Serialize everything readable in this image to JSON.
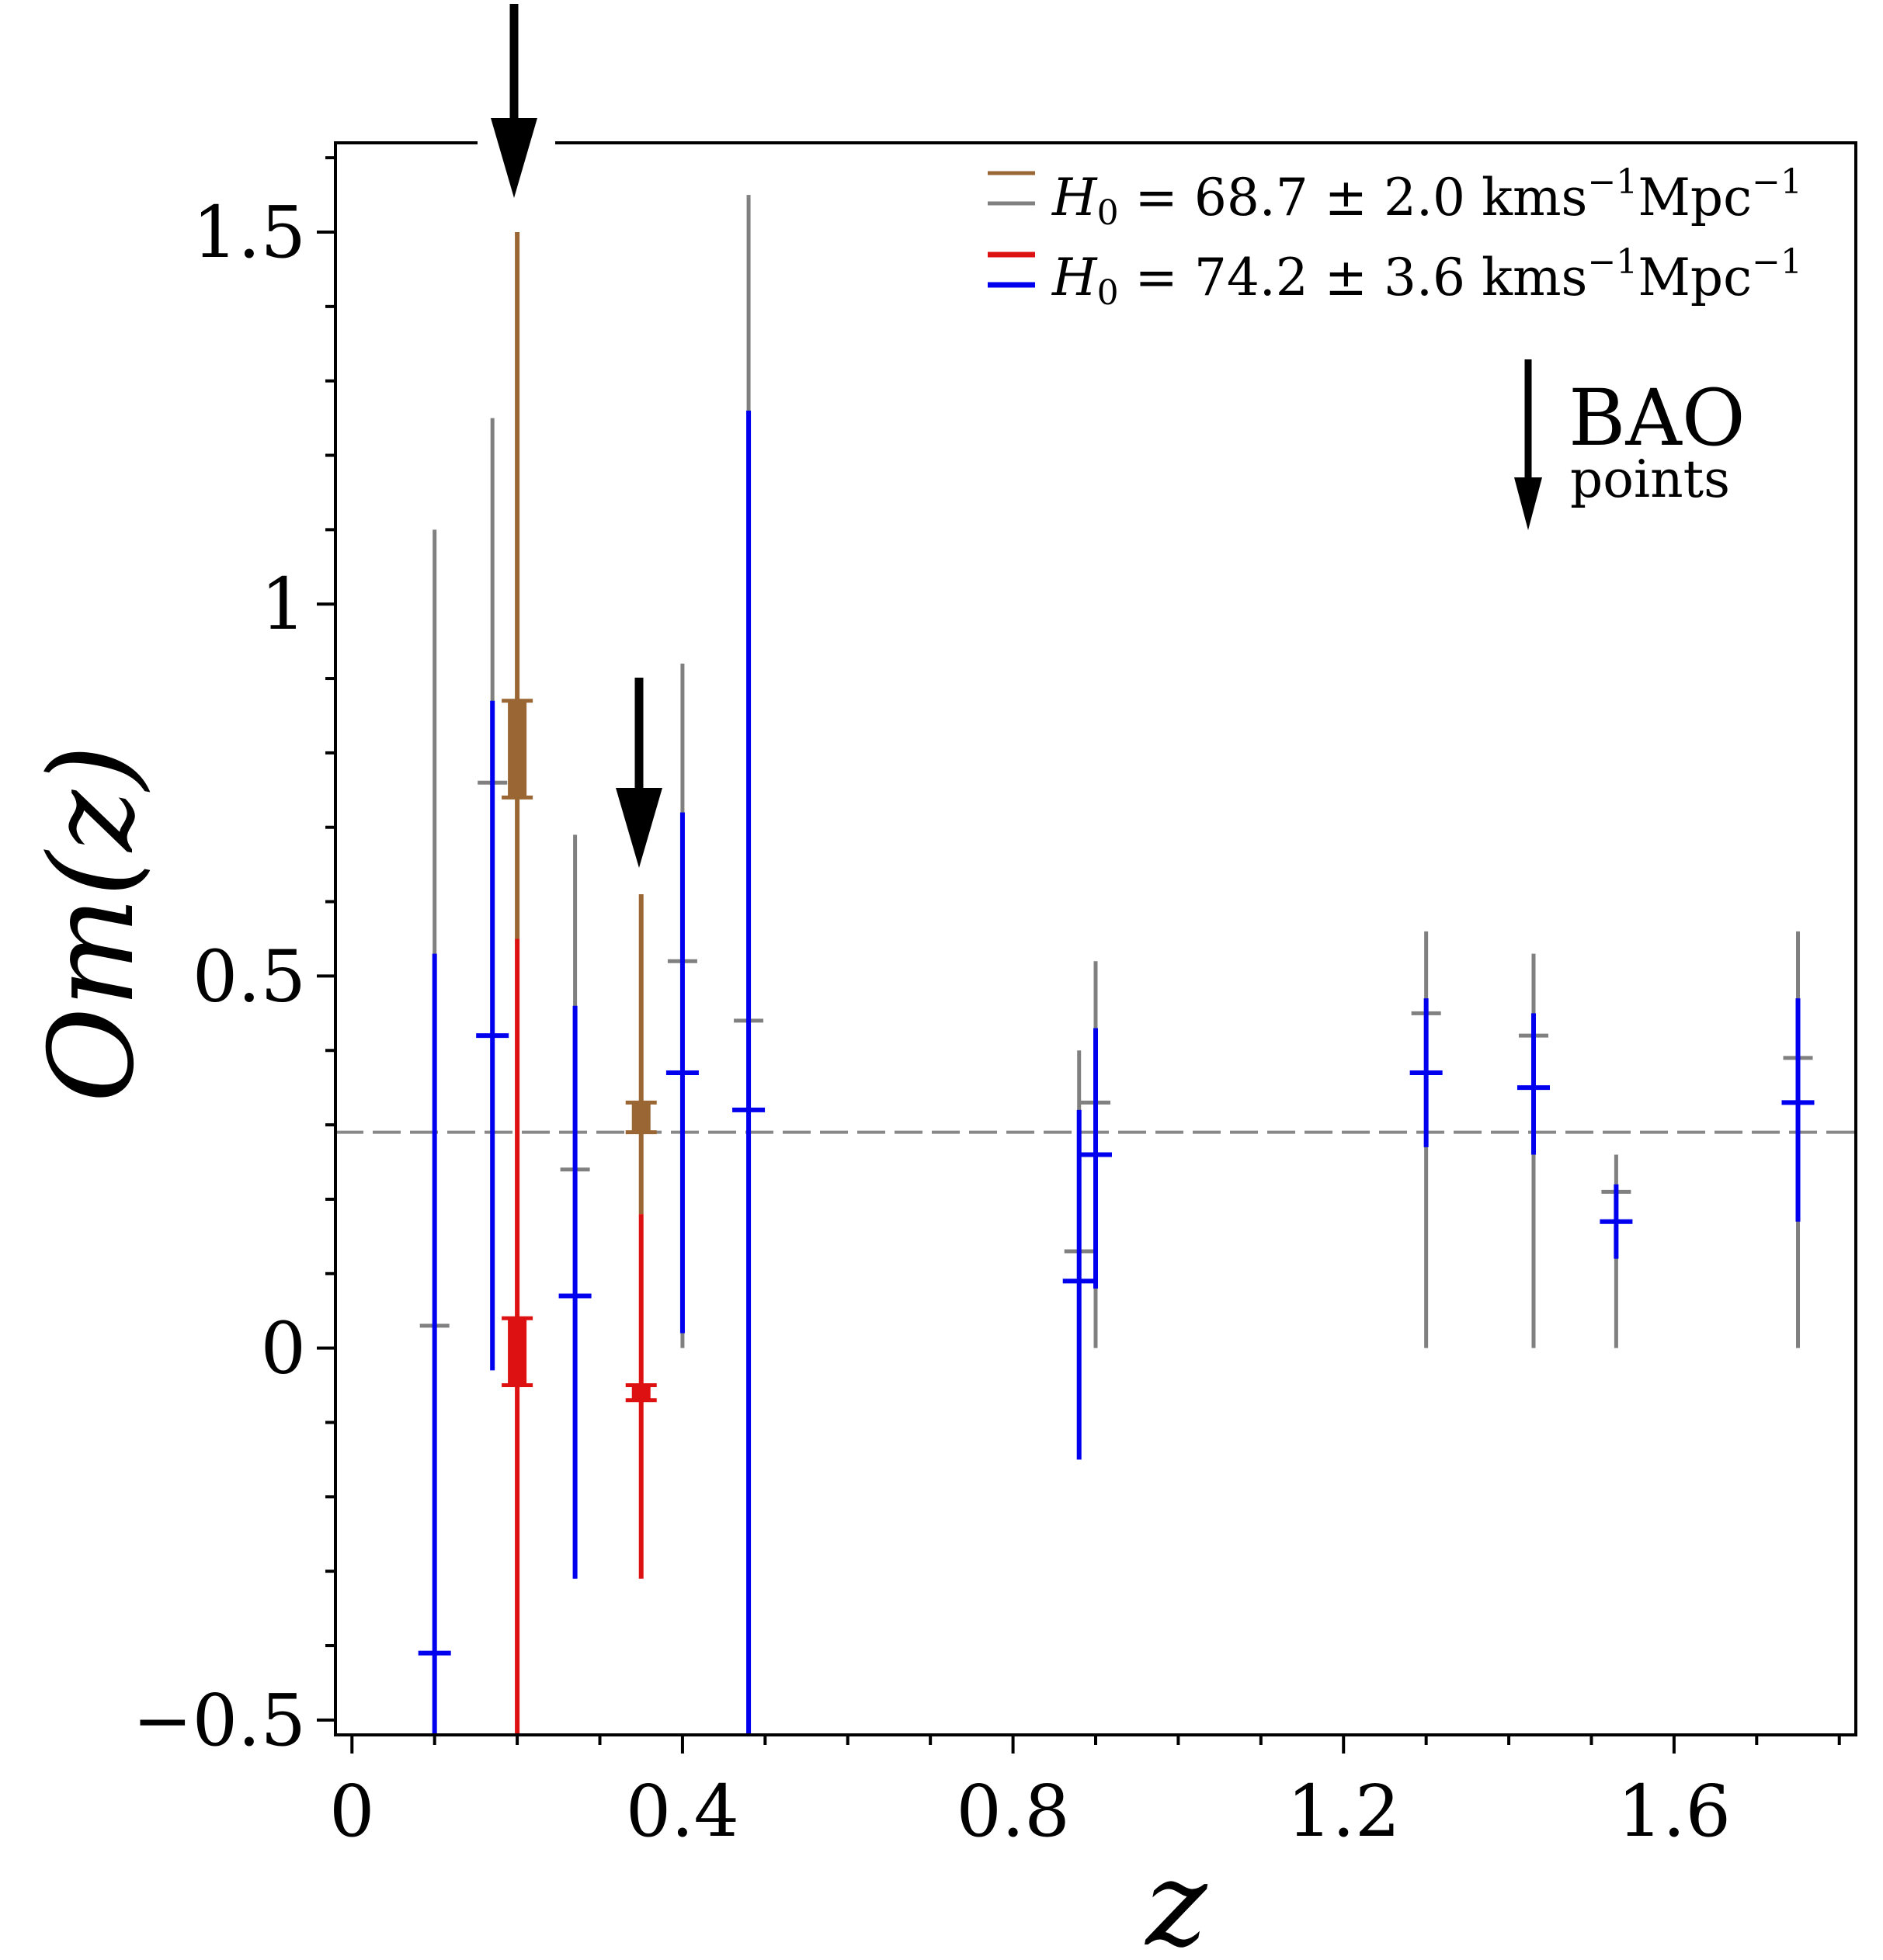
{
  "chart_data": {
    "type": "scatter",
    "title": "",
    "xlabel": "z",
    "ylabel": "Om(z)",
    "xlim": [
      -0.02,
      1.82
    ],
    "ylim": [
      -0.52,
      1.62
    ],
    "x_ticks": [
      0,
      0.4,
      0.8,
      1.2,
      1.6
    ],
    "x_tick_labels": [
      "0",
      "0.4",
      "0.8",
      "1.2",
      "1.6"
    ],
    "y_ticks": [
      -0.5,
      0,
      0.5,
      1,
      1.5
    ],
    "y_tick_labels": [
      "−0.5",
      "0",
      "0.5",
      "1",
      "1.5"
    ],
    "reference_line": {
      "y": 0.29,
      "style": "dashed",
      "color": "#888888"
    },
    "legend": {
      "placement": "top-right",
      "entries": [
        {
          "label_prefix": "H",
          "label_sub": "0",
          "label_value": " = 68.7 ± 2.0 kms",
          "label_sup1": "−1",
          "label_unit": "Mpc",
          "label_sup2": "−1",
          "colors": [
            "#9a6633",
            "#808080"
          ]
        },
        {
          "label_prefix": "H",
          "label_sub": "0",
          "label_value": " = 74.2 ± 3.6 kms",
          "label_sup1": "−1",
          "label_unit": "Mpc",
          "label_sup2": "−1",
          "colors": [
            "#dd1111",
            "#0000ee"
          ]
        }
      ]
    },
    "annotation": {
      "line1": "BAO",
      "line2": "points"
    },
    "bao_arrows_at_z": [
      0.2,
      0.35
    ],
    "series": [
      {
        "name": "H0 = 68.7 ± 2.0 (data points)",
        "color": "#808080",
        "points": [
          {
            "x": 0.1,
            "y": 0.03,
            "ylow": -0.55,
            "yhigh": 1.1
          },
          {
            "x": 0.17,
            "y": 0.76,
            "ylow": 0.0,
            "yhigh": 1.25
          },
          {
            "x": 0.27,
            "y": 0.24,
            "ylow": 0.0,
            "yhigh": 0.69
          },
          {
            "x": 0.4,
            "y": 0.52,
            "ylow": 0.0,
            "yhigh": 0.92
          },
          {
            "x": 0.48,
            "y": 0.44,
            "ylow": 0.0,
            "yhigh": 1.55
          },
          {
            "x": 0.88,
            "y": 0.13,
            "ylow": 0.0,
            "yhigh": 0.4
          },
          {
            "x": 0.9,
            "y": 0.33,
            "ylow": 0.0,
            "yhigh": 0.52
          },
          {
            "x": 1.3,
            "y": 0.45,
            "ylow": 0.0,
            "yhigh": 0.56
          },
          {
            "x": 1.43,
            "y": 0.42,
            "ylow": 0.0,
            "yhigh": 0.53
          },
          {
            "x": 1.53,
            "y": 0.21,
            "ylow": 0.0,
            "yhigh": 0.26
          },
          {
            "x": 1.75,
            "y": 0.39,
            "ylow": 0.0,
            "yhigh": 0.56
          }
        ]
      },
      {
        "name": "H0 = 68.7 ± 2.0 (BAO)",
        "color": "#9a6633",
        "points": [
          {
            "x": 0.2,
            "y": 0.8,
            "ylow": 0.55,
            "yhigh": 1.5,
            "box_low": 0.74,
            "box_high": 0.87
          },
          {
            "x": 0.35,
            "y": 0.3,
            "ylow": 0.18,
            "yhigh": 0.61,
            "box_low": 0.29,
            "box_high": 0.33
          }
        ]
      },
      {
        "name": "H0 = 74.2 ± 3.6 (data points)",
        "color": "#0000ee",
        "points": [
          {
            "x": 0.1,
            "y": -0.41,
            "ylow": -0.55,
            "yhigh": 0.53
          },
          {
            "x": 0.17,
            "y": 0.42,
            "ylow": -0.03,
            "yhigh": 0.87
          },
          {
            "x": 0.27,
            "y": 0.07,
            "ylow": -0.31,
            "yhigh": 0.46
          },
          {
            "x": 0.4,
            "y": 0.37,
            "ylow": 0.02,
            "yhigh": 0.72
          },
          {
            "x": 0.48,
            "y": 0.32,
            "ylow": -0.55,
            "yhigh": 1.26
          },
          {
            "x": 0.88,
            "y": 0.09,
            "ylow": -0.15,
            "yhigh": 0.32
          },
          {
            "x": 0.9,
            "y": 0.26,
            "ylow": 0.08,
            "yhigh": 0.43
          },
          {
            "x": 1.3,
            "y": 0.37,
            "ylow": 0.27,
            "yhigh": 0.47
          },
          {
            "x": 1.43,
            "y": 0.35,
            "ylow": 0.26,
            "yhigh": 0.45
          },
          {
            "x": 1.53,
            "y": 0.17,
            "ylow": 0.12,
            "yhigh": 0.22
          },
          {
            "x": 1.75,
            "y": 0.33,
            "ylow": 0.17,
            "yhigh": 0.47
          }
        ]
      },
      {
        "name": "H0 = 74.2 ± 3.6 (BAO)",
        "color": "#dd1111",
        "points": [
          {
            "x": 0.2,
            "y": 0.0,
            "ylow": -0.55,
            "yhigh": 0.55,
            "box_low": -0.05,
            "box_high": 0.04
          },
          {
            "x": 0.35,
            "y": -0.06,
            "ylow": -0.31,
            "yhigh": 0.18,
            "box_low": -0.07,
            "box_high": -0.05
          }
        ]
      }
    ]
  }
}
